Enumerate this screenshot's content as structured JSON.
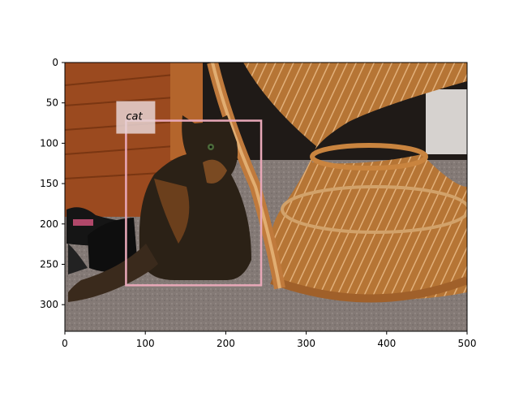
{
  "figure": {
    "image_description_colors": {
      "wood_wall": "#9b4a1f",
      "floor": "#8a817d",
      "wicker": "#c07a3c",
      "cat_dark": "#2b2116",
      "cat_orange": "#7a4a22",
      "shoe": "#111111"
    },
    "x_ticks": [
      "0",
      "100",
      "200",
      "300",
      "400",
      "500"
    ],
    "y_ticks": [
      "0",
      "50",
      "100",
      "150",
      "200",
      "250",
      "300"
    ],
    "xlim": [
      0,
      500
    ],
    "ylim": [
      333,
      0
    ],
    "annotation": {
      "label": "cat",
      "color": "#e8a8b8",
      "label_bg": "#e6d2d2",
      "box_data": {
        "x1": 76,
        "y1": 72,
        "x2": 244,
        "y2": 276
      }
    }
  }
}
